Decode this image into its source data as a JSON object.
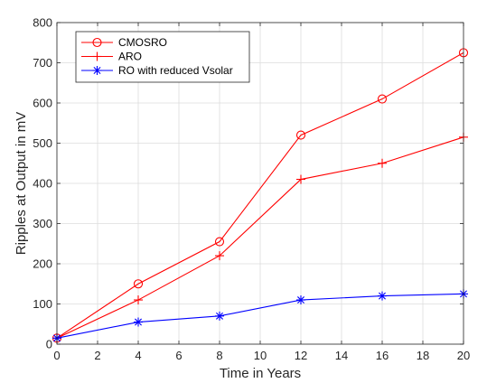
{
  "chart_data": {
    "type": "line",
    "xlabel": "Time in Years",
    "ylabel": "Ripples at Output in mV",
    "xlim": [
      0,
      20
    ],
    "ylim": [
      0,
      800
    ],
    "xticks": [
      0,
      2,
      4,
      6,
      8,
      10,
      12,
      14,
      16,
      18,
      20
    ],
    "yticks": [
      0,
      100,
      200,
      300,
      400,
      500,
      600,
      700,
      800
    ],
    "grid": true,
    "legend_position": "top-left",
    "x": [
      0,
      4,
      8,
      12,
      16,
      20
    ],
    "series": [
      {
        "name": "CMOSRO",
        "color": "#ff0000",
        "marker": "circle",
        "values": [
          15,
          150,
          255,
          520,
          610,
          725
        ]
      },
      {
        "name": "ARO",
        "color": "#ff0000",
        "marker": "plus",
        "values": [
          15,
          110,
          220,
          410,
          450,
          515
        ]
      },
      {
        "name": "RO with reduced Vsolar",
        "color": "#0000ff",
        "marker": "asterisk",
        "values": [
          15,
          55,
          70,
          110,
          120,
          125
        ]
      }
    ]
  }
}
